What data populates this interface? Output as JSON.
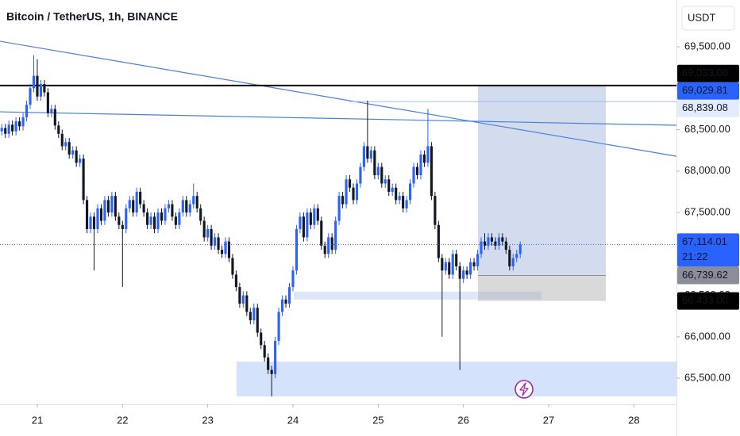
{
  "chart_data": {
    "type": "candlestick",
    "title": "Bitcoin / TetherUS, 1h, BINANCE",
    "currency": "USDT",
    "up_color": "#2962ff",
    "down_color": "#131722",
    "grid": false,
    "xlim": [
      -0.5,
      190
    ],
    "xticks": [
      {
        "value": 10,
        "label": "21"
      },
      {
        "value": 34,
        "label": "22"
      },
      {
        "value": 58,
        "label": "23"
      },
      {
        "value": 82,
        "label": "24"
      },
      {
        "value": 106,
        "label": "25"
      },
      {
        "value": 130,
        "label": "26"
      },
      {
        "value": 154,
        "label": "27"
      },
      {
        "value": 178,
        "label": "28"
      }
    ],
    "ylim": [
      65185,
      70065
    ],
    "yticks": [
      {
        "value": 65500,
        "label": "65,500.00"
      },
      {
        "value": 66000,
        "label": "66,000.00"
      },
      {
        "value": 66500,
        "label": "66,500.00"
      },
      {
        "value": 67000,
        "label": "67,000.00"
      },
      {
        "value": 67500,
        "label": "67,500.00"
      },
      {
        "value": 68000,
        "label": "68,000.00"
      },
      {
        "value": 68500,
        "label": "68,500.00"
      },
      {
        "value": 69000,
        "label": "69,000.00"
      },
      {
        "value": 69500,
        "label": "69,500.00"
      }
    ],
    "ohlc": [
      [
        68480,
        68570,
        68430,
        68520
      ],
      [
        68520,
        68570,
        68400,
        68450
      ],
      [
        68450,
        68610,
        68400,
        68560
      ],
      [
        68560,
        68610,
        68430,
        68480
      ],
      [
        68480,
        68650,
        68430,
        68600
      ],
      [
        68600,
        68650,
        68490,
        68540
      ],
      [
        68540,
        68700,
        68490,
        68650
      ],
      [
        68650,
        68850,
        68600,
        68800
      ],
      [
        68800,
        69050,
        68750,
        69000
      ],
      [
        69000,
        69400,
        68950,
        69150
      ],
      [
        69150,
        69350,
        68850,
        68900
      ],
      [
        68900,
        69100,
        68850,
        69050
      ],
      [
        69050,
        69100,
        68900,
        68950
      ],
      [
        68950,
        69000,
        68650,
        68700
      ],
      [
        68700,
        68800,
        68650,
        68750
      ],
      [
        68750,
        68800,
        68500,
        68550
      ],
      [
        68550,
        68600,
        68400,
        68450
      ],
      [
        68450,
        68500,
        68250,
        68300
      ],
      [
        68300,
        68400,
        68250,
        68350
      ],
      [
        68350,
        68400,
        68150,
        68200
      ],
      [
        68200,
        68300,
        68150,
        68250
      ],
      [
        68250,
        68300,
        68050,
        68100
      ],
      [
        68100,
        68200,
        68050,
        68150
      ],
      [
        68150,
        68200,
        67600,
        67650
      ],
      [
        67650,
        67700,
        67250,
        67300
      ],
      [
        67300,
        67500,
        67250,
        67450
      ],
      [
        67450,
        67500,
        66800,
        67300
      ],
      [
        67300,
        67600,
        67250,
        67550
      ],
      [
        67550,
        67600,
        67350,
        67400
      ],
      [
        67400,
        67700,
        67350,
        67650
      ],
      [
        67650,
        67700,
        67450,
        67500
      ],
      [
        67500,
        67750,
        67450,
        67700
      ],
      [
        67700,
        67750,
        67400,
        67450
      ],
      [
        67450,
        67500,
        67300,
        67350
      ],
      [
        67350,
        67400,
        66600,
        67300
      ],
      [
        67300,
        67600,
        67250,
        67550
      ],
      [
        67550,
        67700,
        67500,
        67650
      ],
      [
        67650,
        67700,
        67450,
        67500
      ],
      [
        67500,
        67800,
        67450,
        67750
      ],
      [
        67750,
        67800,
        67550,
        67600
      ],
      [
        67600,
        67650,
        67450,
        67500
      ],
      [
        67500,
        67550,
        67300,
        67350
      ],
      [
        67350,
        67500,
        67300,
        67450
      ],
      [
        67450,
        67500,
        67250,
        67300
      ],
      [
        67300,
        67550,
        67250,
        67500
      ],
      [
        67500,
        67550,
        67350,
        67400
      ],
      [
        67400,
        67600,
        67350,
        67550
      ],
      [
        67550,
        67650,
        67500,
        67600
      ],
      [
        67600,
        67650,
        67400,
        67450
      ],
      [
        67450,
        67500,
        67300,
        67350
      ],
      [
        67350,
        67550,
        67300,
        67500
      ],
      [
        67500,
        67700,
        67450,
        67650
      ],
      [
        67650,
        67700,
        67450,
        67500
      ],
      [
        67500,
        67650,
        67450,
        67600
      ],
      [
        67600,
        67850,
        67550,
        67700
      ],
      [
        67700,
        67750,
        67500,
        67550
      ],
      [
        67550,
        67600,
        67350,
        67400
      ],
      [
        67400,
        67450,
        67150,
        67200
      ],
      [
        67200,
        67350,
        67150,
        67300
      ],
      [
        67300,
        67350,
        67050,
        67100
      ],
      [
        67100,
        67250,
        67050,
        67200
      ],
      [
        67200,
        67250,
        67000,
        67050
      ],
      [
        67050,
        67100,
        66950,
        67000
      ],
      [
        67000,
        67200,
        66950,
        67150
      ],
      [
        67150,
        67200,
        66900,
        66950
      ],
      [
        66950,
        67000,
        66700,
        66750
      ],
      [
        66750,
        66800,
        66550,
        66600
      ],
      [
        66600,
        66650,
        66350,
        66400
      ],
      [
        66400,
        66550,
        66350,
        66500
      ],
      [
        66500,
        66550,
        66250,
        66300
      ],
      [
        66300,
        66350,
        66150,
        66200
      ],
      [
        66200,
        66400,
        66150,
        66350
      ],
      [
        66350,
        66400,
        66000,
        66050
      ],
      [
        66050,
        66100,
        65850,
        65900
      ],
      [
        65900,
        65950,
        65700,
        65750
      ],
      [
        65750,
        65800,
        65550,
        65600
      ],
      [
        65600,
        65650,
        65280,
        65550
      ],
      [
        65550,
        66000,
        65500,
        65950
      ],
      [
        65950,
        66350,
        65900,
        66300
      ],
      [
        66300,
        66500,
        66250,
        66450
      ],
      [
        66450,
        66500,
        66350,
        66400
      ],
      [
        66400,
        66650,
        66350,
        66600
      ],
      [
        66600,
        66850,
        66550,
        66800
      ],
      [
        66800,
        67350,
        66750,
        67300
      ],
      [
        67300,
        67500,
        67250,
        67450
      ],
      [
        67450,
        67500,
        67150,
        67200
      ],
      [
        67200,
        67550,
        67150,
        67500
      ],
      [
        67500,
        67550,
        67300,
        67350
      ],
      [
        67350,
        67600,
        67300,
        67550
      ],
      [
        67550,
        67600,
        67350,
        67400
      ],
      [
        67400,
        67450,
        67050,
        67100
      ],
      [
        67100,
        67150,
        66950,
        67000
      ],
      [
        67000,
        67250,
        66950,
        67200
      ],
      [
        67200,
        67250,
        67000,
        67050
      ],
      [
        67050,
        67450,
        67000,
        67400
      ],
      [
        67400,
        67750,
        67350,
        67700
      ],
      [
        67700,
        67750,
        67550,
        67600
      ],
      [
        67600,
        67950,
        67550,
        67900
      ],
      [
        67900,
        67950,
        67750,
        67800
      ],
      [
        67800,
        67850,
        67600,
        67650
      ],
      [
        67650,
        67900,
        67600,
        67850
      ],
      [
        67850,
        68100,
        67800,
        68050
      ],
      [
        68050,
        68350,
        68000,
        68300
      ],
      [
        68300,
        68850,
        68100,
        68150
      ],
      [
        68150,
        68300,
        68100,
        68250
      ],
      [
        68250,
        68300,
        67900,
        67950
      ],
      [
        67950,
        68100,
        67900,
        68050
      ],
      [
        68050,
        68100,
        67800,
        67850
      ],
      [
        67850,
        67950,
        67800,
        67900
      ],
      [
        67900,
        67950,
        67700,
        67750
      ],
      [
        67750,
        67850,
        67700,
        67800
      ],
      [
        67800,
        67850,
        67600,
        67650
      ],
      [
        67650,
        67750,
        67600,
        67700
      ],
      [
        67700,
        67750,
        67500,
        67550
      ],
      [
        67550,
        67700,
        67500,
        67650
      ],
      [
        67650,
        67900,
        67600,
        67850
      ],
      [
        67850,
        68100,
        67800,
        68050
      ],
      [
        68050,
        68100,
        67900,
        67950
      ],
      [
        67950,
        68250,
        67900,
        68200
      ],
      [
        68200,
        68250,
        68050,
        68100
      ],
      [
        68100,
        68750,
        68050,
        68300
      ],
      [
        68300,
        68350,
        67650,
        67700
      ],
      [
        67700,
        67750,
        67300,
        67350
      ],
      [
        67350,
        67400,
        66900,
        66950
      ],
      [
        66950,
        67000,
        66000,
        66800
      ],
      [
        66800,
        66950,
        66750,
        66900
      ],
      [
        66900,
        66950,
        66700,
        66750
      ],
      [
        66750,
        67050,
        66700,
        67000
      ],
      [
        67000,
        67050,
        66800,
        66850
      ],
      [
        66850,
        66900,
        65600,
        66700
      ],
      [
        66700,
        66850,
        66650,
        66800
      ],
      [
        66800,
        66850,
        66700,
        66750
      ],
      [
        66750,
        66950,
        66700,
        66900
      ],
      [
        66900,
        66950,
        66800,
        66850
      ],
      [
        66850,
        67050,
        66800,
        67000
      ],
      [
        67000,
        67200,
        66950,
        67150
      ],
      [
        67150,
        67250,
        67050,
        67100
      ],
      [
        67100,
        67250,
        67050,
        67200
      ],
      [
        67200,
        67250,
        67100,
        67150
      ],
      [
        67150,
        67200,
        67050,
        67100
      ],
      [
        67100,
        67250,
        67050,
        67200
      ],
      [
        67200,
        67250,
        67100,
        67150
      ],
      [
        67150,
        67200,
        67000,
        67050
      ],
      [
        67050,
        67100,
        66800,
        66850
      ],
      [
        66850,
        67000,
        66800,
        66950
      ],
      [
        66950,
        67050,
        66900,
        67000
      ],
      [
        67000,
        67150,
        66950,
        67114.01
      ]
    ],
    "trendlines": [
      {
        "points": [
          [
            -0.5,
            69567
          ],
          [
            190,
            68179
          ]
        ],
        "color": "#4a7fe0"
      },
      {
        "points": [
          [
            -0.5,
            68715
          ],
          [
            190,
            68553
          ]
        ],
        "color": "#4a7fe0"
      }
    ],
    "zones": [
      {
        "from": 66.1,
        "to": 190,
        "low": 65280,
        "high": 65700,
        "color": "#d4e3fb"
      },
      {
        "from": 82.2,
        "to": 152,
        "low": 66450,
        "high": 66545,
        "color": "#dce7fa"
      }
    ],
    "levels": [
      {
        "value": 69033.06,
        "label": "69,033.06",
        "from": -0.5,
        "to": 190,
        "color": "#000000",
        "width": 2
      },
      {
        "value": 68839.08,
        "label": "68,839.08",
        "from": 97.9,
        "to": 190,
        "color": "#9dbcf3",
        "width": 1
      }
    ],
    "position": {
      "from": 134.1,
      "to": 170.1,
      "top": {
        "value": 69029.81,
        "label": "69,029.81"
      },
      "entry": {
        "value": 66739.62,
        "label": "66,739.62"
      },
      "bottom": {
        "value": 66433,
        "label": "66,433.00"
      }
    },
    "last": {
      "value": 67114.01,
      "label": "67,114.01",
      "countdown": "21:22"
    }
  }
}
